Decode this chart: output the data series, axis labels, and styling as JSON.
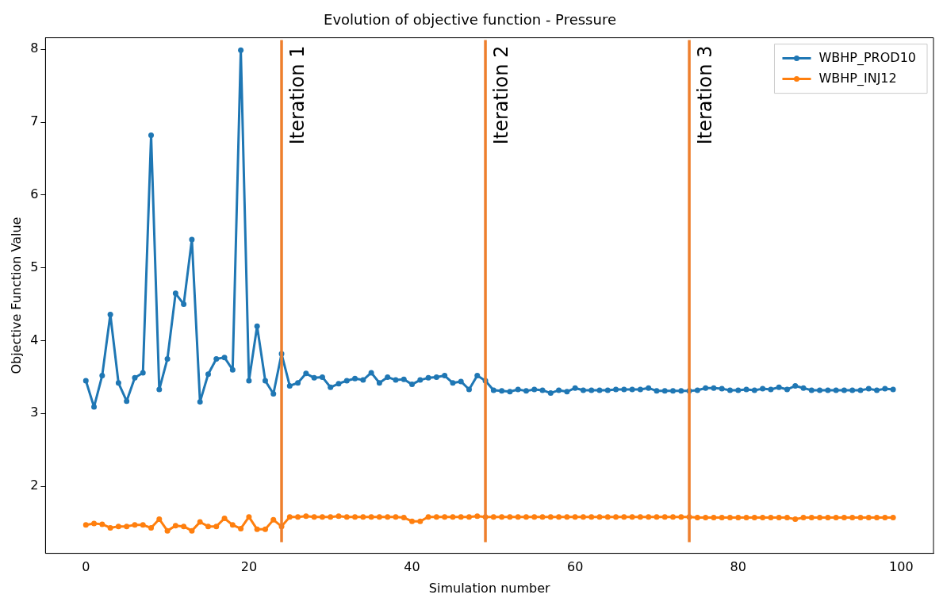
{
  "chart_data": {
    "type": "line",
    "title": "Evolution of objective function - Pressure",
    "xlabel": "Simulation number",
    "ylabel": "Objective Function Value",
    "x": [
      0,
      1,
      2,
      3,
      4,
      5,
      6,
      7,
      8,
      9,
      10,
      11,
      12,
      13,
      14,
      15,
      16,
      17,
      18,
      19,
      20,
      21,
      22,
      23,
      24,
      25,
      26,
      27,
      28,
      29,
      30,
      31,
      32,
      33,
      34,
      35,
      36,
      37,
      38,
      39,
      40,
      41,
      42,
      43,
      44,
      45,
      46,
      47,
      48,
      49,
      50,
      51,
      52,
      53,
      54,
      55,
      56,
      57,
      58,
      59,
      60,
      61,
      62,
      63,
      64,
      65,
      66,
      67,
      68,
      69,
      70,
      71,
      72,
      73,
      74,
      75,
      76,
      77,
      78,
      79,
      80,
      81,
      82,
      83,
      84,
      85,
      86,
      87,
      88,
      89,
      90,
      91,
      92,
      93,
      94,
      95,
      96,
      97,
      98,
      99
    ],
    "series": [
      {
        "name": "WBHP_PROD10",
        "color": "#1f77b4",
        "values": [
          3.45,
          3.09,
          3.52,
          4.36,
          3.42,
          3.17,
          3.49,
          3.56,
          6.82,
          3.33,
          3.75,
          4.65,
          4.5,
          5.39,
          3.16,
          3.54,
          3.75,
          3.77,
          3.6,
          7.99,
          3.45,
          4.2,
          3.45,
          3.27,
          3.82,
          3.38,
          3.42,
          3.55,
          3.49,
          3.5,
          3.36,
          3.41,
          3.45,
          3.48,
          3.46,
          3.56,
          3.42,
          3.5,
          3.46,
          3.47,
          3.4,
          3.46,
          3.49,
          3.5,
          3.52,
          3.42,
          3.44,
          3.33,
          3.52,
          3.45,
          3.32,
          3.31,
          3.3,
          3.33,
          3.31,
          3.33,
          3.32,
          3.28,
          3.32,
          3.3,
          3.35,
          3.32,
          3.32,
          3.32,
          3.32,
          3.33,
          3.33,
          3.33,
          3.33,
          3.35,
          3.31,
          3.31,
          3.31,
          3.31,
          3.31,
          3.32,
          3.35,
          3.35,
          3.34,
          3.32,
          3.32,
          3.33,
          3.32,
          3.34,
          3.33,
          3.36,
          3.33,
          3.38,
          3.35,
          3.32,
          3.32,
          3.32,
          3.32,
          3.32,
          3.32,
          3.32,
          3.34,
          3.32,
          3.34,
          3.33
        ]
      },
      {
        "name": "WBHP_INJ12",
        "color": "#ff7f0e",
        "values": [
          1.47,
          1.49,
          1.48,
          1.43,
          1.45,
          1.45,
          1.47,
          1.47,
          1.43,
          1.55,
          1.39,
          1.46,
          1.45,
          1.39,
          1.51,
          1.45,
          1.45,
          1.56,
          1.47,
          1.42,
          1.58,
          1.41,
          1.41,
          1.54,
          1.45,
          1.58,
          1.58,
          1.59,
          1.58,
          1.58,
          1.58,
          1.59,
          1.58,
          1.58,
          1.58,
          1.58,
          1.58,
          1.58,
          1.58,
          1.57,
          1.52,
          1.52,
          1.58,
          1.58,
          1.58,
          1.58,
          1.58,
          1.58,
          1.59,
          1.58,
          1.58,
          1.58,
          1.58,
          1.58,
          1.58,
          1.58,
          1.58,
          1.58,
          1.58,
          1.58,
          1.58,
          1.58,
          1.58,
          1.58,
          1.58,
          1.58,
          1.58,
          1.58,
          1.58,
          1.58,
          1.58,
          1.58,
          1.58,
          1.58,
          1.58,
          1.57,
          1.57,
          1.57,
          1.57,
          1.57,
          1.57,
          1.57,
          1.57,
          1.57,
          1.57,
          1.57,
          1.57,
          1.55,
          1.57,
          1.57,
          1.57,
          1.57,
          1.57,
          1.57,
          1.57,
          1.57,
          1.57,
          1.57,
          1.57,
          1.57
        ]
      }
    ],
    "xlim": [
      -4.95,
      103.95
    ],
    "ylim": [
      1.08,
      8.16
    ],
    "xticks": [
      0,
      20,
      40,
      60,
      80,
      100
    ],
    "yticks": [
      2,
      3,
      4,
      5,
      6,
      7,
      8
    ],
    "ref_lines": [
      {
        "axis": "x",
        "value": 24,
        "label": "Iteration 1",
        "color": "#ee7f2d"
      },
      {
        "axis": "x",
        "value": 49,
        "label": "Iteration 2",
        "color": "#ee7f2d"
      },
      {
        "axis": "x",
        "value": 74,
        "label": "Iteration 3",
        "color": "#ee7f2d"
      }
    ],
    "grid": false,
    "legend": "top right",
    "marker": "circle",
    "line_style": "solid"
  }
}
